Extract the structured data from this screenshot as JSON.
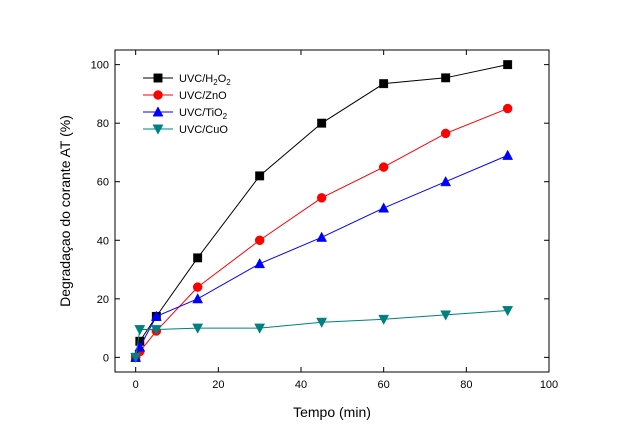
{
  "chart_data": {
    "type": "line",
    "xlabel": "Tempo (min)",
    "ylabel": "Degradaçao do corante AT (%)",
    "xlim": [
      -5,
      100
    ],
    "ylim": [
      -5,
      105
    ],
    "x_ticks": [
      0,
      20,
      40,
      60,
      80,
      100
    ],
    "y_ticks": [
      0,
      20,
      40,
      60,
      80,
      100
    ],
    "grid": false,
    "legend_position": "top-left",
    "series": [
      {
        "name": "UVC/H2O2",
        "name_main": "UVC/H",
        "name_sub1": "2",
        "name_mid": "O",
        "name_sub2": "2",
        "marker": "square",
        "color": "#000000",
        "x": [
          0,
          1,
          5,
          15,
          30,
          45,
          60,
          75,
          90
        ],
        "y": [
          0,
          5.5,
          14,
          34,
          62,
          80,
          93.5,
          95.5,
          100
        ]
      },
      {
        "name": "UVC/ZnO",
        "marker": "circle",
        "color": "#ff0000",
        "x": [
          0,
          1,
          5,
          15,
          30,
          45,
          60,
          75,
          90
        ],
        "y": [
          0,
          2,
          9,
          24,
          40,
          54.5,
          65,
          76.5,
          85
        ]
      },
      {
        "name": "UVC/TiO2",
        "name_main": "UVC/TiO",
        "name_sub": "2",
        "marker": "triangle-up",
        "color": "#0000ff",
        "x": [
          0,
          1,
          5,
          15,
          30,
          45,
          60,
          75,
          90
        ],
        "y": [
          0,
          3.5,
          14,
          20,
          32,
          41,
          51,
          60,
          69
        ]
      },
      {
        "name": "UVC/CuO",
        "marker": "triangle-down",
        "color": "#008080",
        "x": [
          0,
          1,
          5,
          15,
          30,
          45,
          60,
          75,
          90
        ],
        "y": [
          0,
          9.5,
          9.5,
          10,
          10,
          12,
          13,
          14.5,
          16
        ]
      }
    ]
  }
}
